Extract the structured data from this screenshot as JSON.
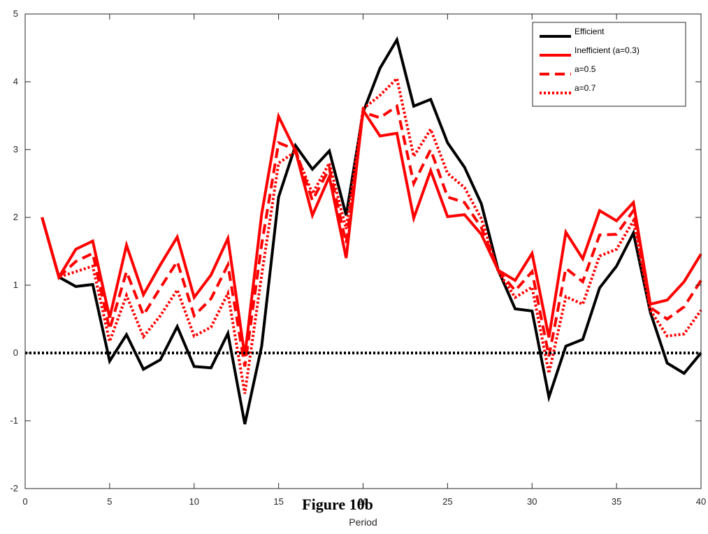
{
  "caption": "Figure 10b",
  "chart_data": {
    "type": "line",
    "title": "",
    "xlabel": "Period",
    "ylabel": "",
    "xlim": [
      0,
      40
    ],
    "ylim": [
      -2,
      5
    ],
    "xticks": [
      0,
      5,
      10,
      15,
      20,
      25,
      30,
      35,
      40
    ],
    "yticks": [
      -2,
      -1,
      0,
      1,
      2,
      3,
      4,
      5
    ],
    "grid": false,
    "legend_position": "top-right",
    "reference_line": {
      "y": 0,
      "style": "dotted",
      "color": "#000000"
    },
    "x": [
      1,
      2,
      3,
      4,
      5,
      6,
      7,
      8,
      9,
      10,
      11,
      12,
      13,
      14,
      15,
      16,
      17,
      18,
      19,
      20,
      21,
      22,
      23,
      24,
      25,
      26,
      27,
      28,
      29,
      30,
      31,
      32,
      33,
      34,
      35,
      36,
      37,
      38,
      39,
      40
    ],
    "series": [
      {
        "name": "Efficient",
        "color": "#000000",
        "style": "solid",
        "values": [
          2.0,
          1.12,
          0.98,
          1.01,
          -0.12,
          0.27,
          -0.24,
          -0.1,
          0.39,
          -0.2,
          -0.22,
          0.29,
          -1.05,
          0.1,
          2.3,
          3.06,
          2.71,
          2.98,
          2.03,
          3.55,
          4.2,
          4.62,
          3.64,
          3.74,
          3.1,
          2.74,
          2.2,
          1.22,
          0.65,
          0.62,
          -0.65,
          0.1,
          0.2,
          0.96,
          1.28,
          1.77,
          0.6,
          -0.15,
          -0.3,
          0.0
        ]
      },
      {
        "name": "Inefficient (a=0.3)",
        "color": "#ff0000",
        "style": "solid",
        "values": [
          2.0,
          1.12,
          1.53,
          1.65,
          0.52,
          1.59,
          0.86,
          1.3,
          1.71,
          0.82,
          1.15,
          1.69,
          -0.05,
          2.05,
          3.49,
          2.98,
          2.03,
          2.6,
          1.4,
          3.58,
          3.2,
          3.24,
          1.99,
          2.69,
          2.01,
          2.04,
          1.75,
          1.22,
          1.07,
          1.47,
          0.23,
          1.78,
          1.39,
          2.1,
          1.95,
          2.22,
          0.72,
          0.78,
          1.05,
          1.46
        ]
      },
      {
        "name": "a=0.5",
        "color": "#ff0000",
        "style": "dashed",
        "values": [
          2.0,
          1.12,
          1.35,
          1.47,
          0.35,
          1.2,
          0.56,
          0.96,
          1.35,
          0.55,
          0.8,
          1.3,
          -0.2,
          1.6,
          3.1,
          3.0,
          2.25,
          2.72,
          1.62,
          3.55,
          3.47,
          3.64,
          2.5,
          3.0,
          2.3,
          2.22,
          1.85,
          1.22,
          0.92,
          1.2,
          -0.05,
          1.25,
          1.05,
          1.74,
          1.75,
          2.1,
          0.67,
          0.5,
          0.68,
          1.07
        ]
      },
      {
        "name": "a=0.7",
        "color": "#ff0000",
        "style": "dotted",
        "values": [
          2.0,
          1.12,
          1.2,
          1.28,
          0.17,
          0.85,
          0.24,
          0.55,
          0.93,
          0.25,
          0.38,
          0.88,
          -0.6,
          1.15,
          2.8,
          2.97,
          2.35,
          2.8,
          1.83,
          3.6,
          3.8,
          4.05,
          2.9,
          3.3,
          2.65,
          2.44,
          1.98,
          1.2,
          0.82,
          0.97,
          -0.3,
          0.83,
          0.72,
          1.43,
          1.53,
          1.95,
          0.63,
          0.25,
          0.28,
          0.63
        ]
      }
    ]
  }
}
